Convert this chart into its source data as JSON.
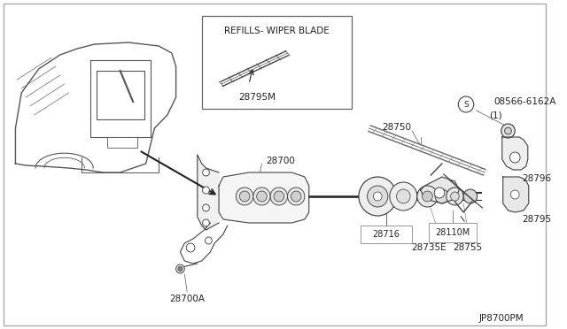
{
  "bg_color": "#ffffff",
  "border_color": "#aaaaaa",
  "line_color": "#333333",
  "text_color": "#222222",
  "footer_text": "JP8700PM",
  "inset_label": "REFILLS- WIPER BLADE",
  "inset_part": "28795M",
  "fig_w": 6.4,
  "fig_h": 3.72,
  "dpi": 100
}
